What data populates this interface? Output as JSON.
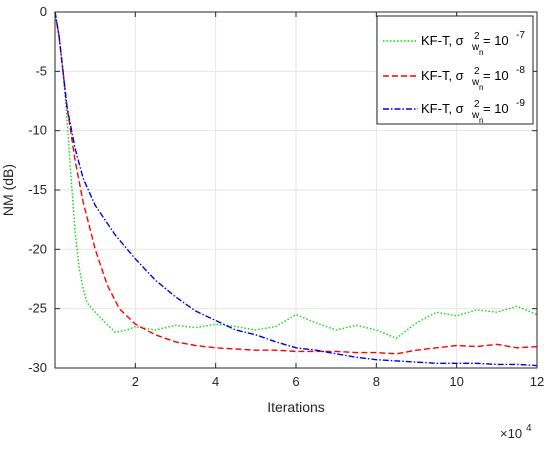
{
  "chart_data": {
    "type": "line",
    "xlabel": "Iterations",
    "ylabel": "NM (dB)",
    "x_exponent_label": "×10",
    "x_exponent": "4",
    "xlim": [
      0,
      12
    ],
    "ylim": [
      -30,
      0
    ],
    "xticks": [
      2,
      4,
      6,
      8,
      10,
      12
    ],
    "yticks": [
      0,
      -5,
      -10,
      -15,
      -20,
      -25,
      -30
    ],
    "grid": true,
    "legend_position": "top-right",
    "series": [
      {
        "name": "KF-T, σ²wn = 10⁻⁷",
        "legend_main": "KF-T, σ",
        "legend_sup": "2",
        "legend_sub": "w",
        "legend_subsub": "n",
        "legend_eq": " = 10",
        "legend_exp": "-7",
        "color": "#00dd00",
        "dash": "1.5,2",
        "x": [
          0,
          0.1,
          0.2,
          0.3,
          0.4,
          0.5,
          0.6,
          0.7,
          0.8,
          1.0,
          1.2,
          1.5,
          1.8,
          2.0,
          2.5,
          3.0,
          3.5,
          4.0,
          4.5,
          5.0,
          5.5,
          6.0,
          6.5,
          7.0,
          7.5,
          8.0,
          8.5,
          9.0,
          9.5,
          10.0,
          10.5,
          11.0,
          11.5,
          12.0
        ],
        "y": [
          0,
          -2,
          -5,
          -9,
          -14,
          -18.5,
          -21.5,
          -23.3,
          -24.5,
          -25.3,
          -26,
          -27,
          -26.8,
          -26.5,
          -26.8,
          -26.4,
          -26.6,
          -26.3,
          -26.5,
          -26.8,
          -26.5,
          -25.5,
          -26.2,
          -26.8,
          -26.4,
          -26.8,
          -27.5,
          -26.2,
          -25.3,
          -25.6,
          -25.1,
          -25.3,
          -24.8,
          -25.5
        ]
      },
      {
        "name": "KF-T, σ²wn = 10⁻⁸",
        "legend_main": "KF-T, σ",
        "legend_sup": "2",
        "legend_sub": "w",
        "legend_subsub": "n",
        "legend_eq": " = 10",
        "legend_exp": "-8",
        "color": "#ff0000",
        "dash": "6,3",
        "x": [
          0,
          0.1,
          0.2,
          0.3,
          0.5,
          0.7,
          1.0,
          1.3,
          1.6,
          2.0,
          2.5,
          3.0,
          3.5,
          4.0,
          4.5,
          5.0,
          5.5,
          6.0,
          6.5,
          7.0,
          7.5,
          8.0,
          8.5,
          9.0,
          9.5,
          10.0,
          10.5,
          11.0,
          11.5,
          12.0
        ],
        "y": [
          0,
          -2,
          -5,
          -8,
          -12.5,
          -16,
          -20,
          -23,
          -25,
          -26.3,
          -27.2,
          -27.8,
          -28.1,
          -28.3,
          -28.4,
          -28.5,
          -28.5,
          -28.6,
          -28.6,
          -28.6,
          -28.7,
          -28.7,
          -28.8,
          -28.5,
          -28.3,
          -28.1,
          -28.2,
          -28.0,
          -28.3,
          -28.2
        ]
      },
      {
        "name": "KF-T, σ²wn = 10⁻⁹",
        "legend_main": "KF-T, σ",
        "legend_sup": "2",
        "legend_sub": "w",
        "legend_subsub": "n",
        "legend_eq": " = 10",
        "legend_exp": "-9",
        "color": "#0000ee",
        "dash": "6,2,1.5,2",
        "x": [
          0,
          0.1,
          0.2,
          0.3,
          0.5,
          0.7,
          1.0,
          1.5,
          2.0,
          2.5,
          3.0,
          3.5,
          4.0,
          4.5,
          5.0,
          5.5,
          6.0,
          6.5,
          7.0,
          7.5,
          8.0,
          8.5,
          9.0,
          9.5,
          10.0,
          10.5,
          11.0,
          11.5,
          12.0
        ],
        "y": [
          0,
          -2,
          -5,
          -8,
          -11.5,
          -14,
          -16.3,
          -18.8,
          -20.8,
          -22.6,
          -24.0,
          -25.2,
          -26.0,
          -26.8,
          -27.2,
          -27.8,
          -28.3,
          -28.5,
          -28.8,
          -29.1,
          -29.3,
          -29.4,
          -29.5,
          -29.6,
          -29.6,
          -29.6,
          -29.7,
          -29.7,
          -29.8
        ]
      }
    ]
  }
}
